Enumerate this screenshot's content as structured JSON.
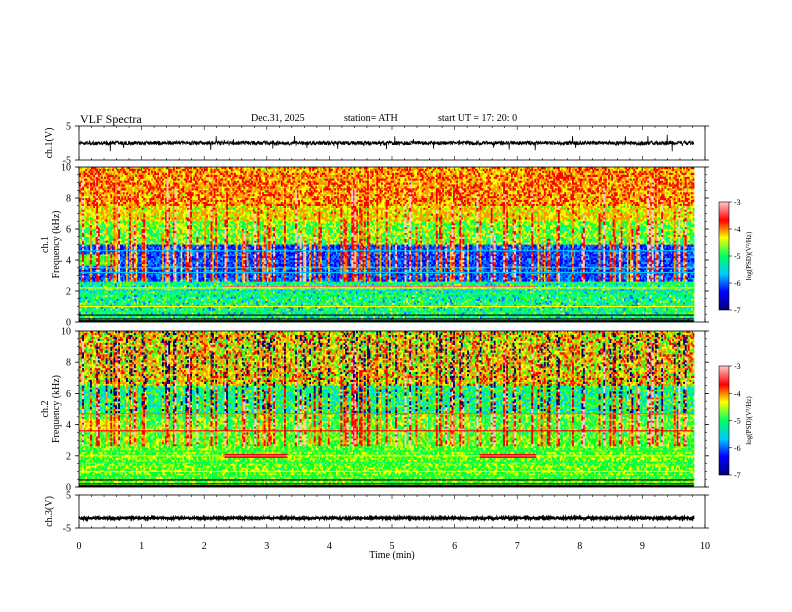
{
  "header": {
    "title": "VLF  Spectra",
    "date": "Dec.31, 2025",
    "station": "station= ATH",
    "start": "start  UT  =    17: 20: 0"
  },
  "chart_data": [
    {
      "type": "line",
      "name": "ch1-waveform",
      "ylabel": "ch.1(V)",
      "ylim": [
        -5,
        5
      ],
      "yticks": [
        "5",
        "-5"
      ],
      "description_values": {
        "baseline": 0,
        "typical_amplitude": 0.6,
        "spike_amplitude": 2.5
      }
    },
    {
      "type": "heatmap",
      "name": "ch1-spectrogram",
      "ylabel": "ch.1\nFrequency  (kHz)",
      "ylim": [
        0,
        10
      ],
      "yticks": [
        "0",
        "2",
        "4",
        "6",
        "8",
        "10"
      ],
      "colorbar": {
        "label": "log(PSD)(V²/Hz)",
        "ticks": [
          "-3",
          "-4",
          "-5",
          "-6",
          "-7"
        ],
        "range": [
          -7,
          -3
        ]
      }
    },
    {
      "type": "heatmap",
      "name": "ch2-spectrogram",
      "ylabel": "ch.2\nFrequency  (kHz)",
      "ylim": [
        0,
        10
      ],
      "yticks": [
        "0",
        "2",
        "4",
        "6",
        "8",
        "10"
      ],
      "colorbar": {
        "label": "log(PSD)(V²/Hz)",
        "ticks": [
          "-3",
          "-4",
          "-5",
          "-6",
          "-7"
        ],
        "range": [
          -7,
          -3
        ]
      }
    },
    {
      "type": "line",
      "name": "ch3-waveform",
      "ylabel": "ch.3(V)",
      "ylim": [
        -5,
        5
      ],
      "yticks": [
        "5",
        "-5"
      ],
      "description_values": {
        "baseline": -2,
        "typical_amplitude": 0.3
      }
    }
  ],
  "xaxis": {
    "label": "Time  (min)",
    "range": [
      0,
      10
    ],
    "ticks": [
      "0",
      "1",
      "2",
      "3",
      "4",
      "5",
      "6",
      "7",
      "8",
      "9",
      "10"
    ],
    "data_end": 9.82
  },
  "colors": {
    "dark": "#00007a",
    "blue": "#0000ff",
    "cyan": "#00c8ff",
    "green": "#00ff64",
    "yellow": "#ffff00",
    "red": "#ff0000",
    "pink": "#ffc8c8"
  }
}
